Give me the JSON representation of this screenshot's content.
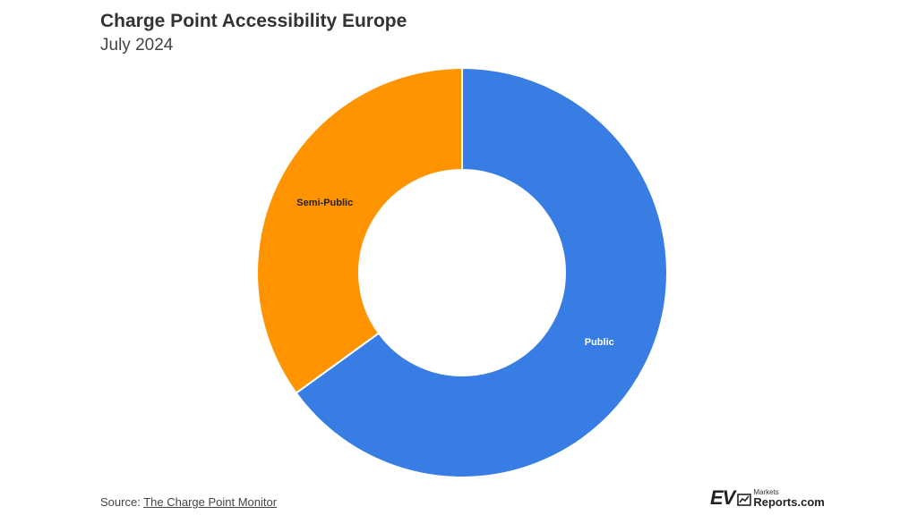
{
  "header": {
    "title": "Charge Point Accessibility Europe",
    "subtitle": "July 2024"
  },
  "chart_data": {
    "type": "pie",
    "donut": true,
    "title": "Charge Point Accessibility Europe",
    "subtitle": "July 2024",
    "slices": [
      {
        "label": "Public",
        "value": 65,
        "color": "#377de4",
        "label_color": "#ffffff"
      },
      {
        "label": "Semi-Public",
        "value": 35,
        "color": "#ff9300",
        "label_color": "#222222"
      }
    ]
  },
  "footer": {
    "source_prefix": "Source:",
    "source_link": "The Charge Point Monitor",
    "logo_ev": "EV",
    "logo_small": "Markets",
    "logo_big": "Reports.com"
  }
}
